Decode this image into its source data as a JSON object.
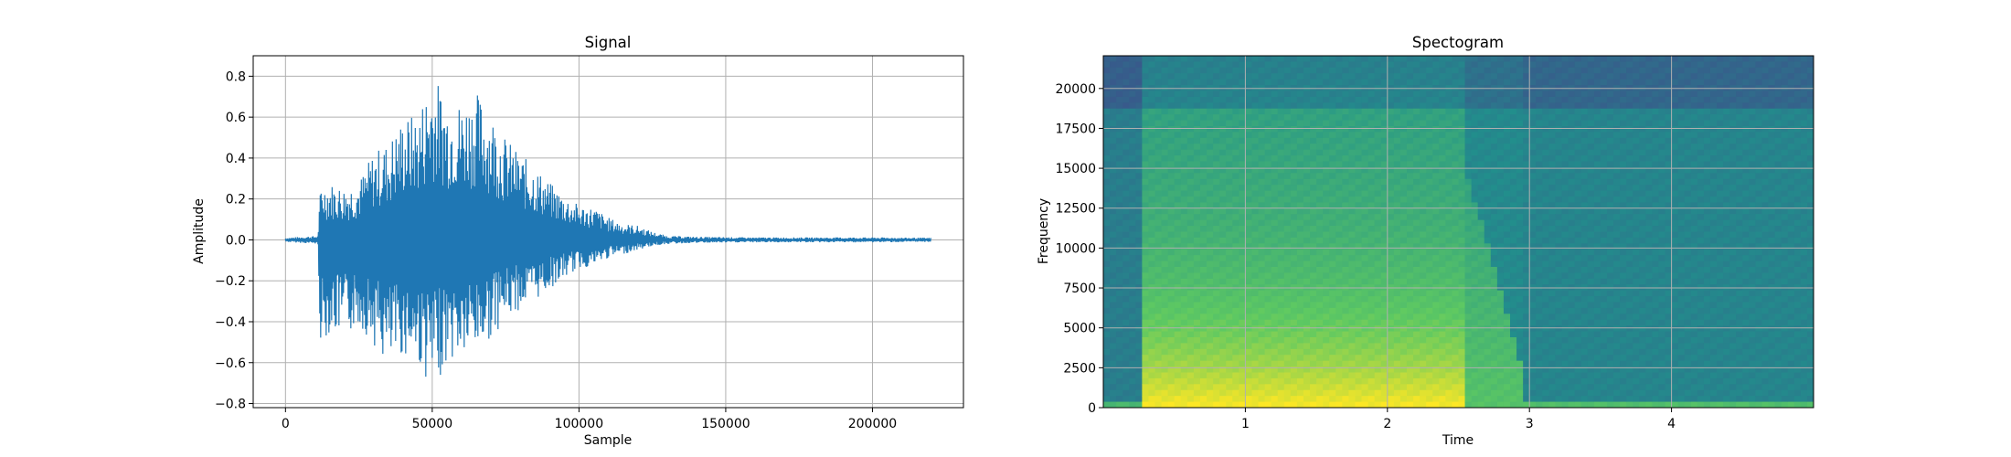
{
  "chart_data": [
    {
      "type": "line",
      "title": "Signal",
      "xlabel": "Sample",
      "ylabel": "Amplitude",
      "xlim": [
        -11000,
        231000
      ],
      "ylim": [
        -0.82,
        0.9
      ],
      "x_ticks": [
        0,
        50000,
        100000,
        150000,
        200000
      ],
      "y_ticks": [
        -0.8,
        -0.6,
        -0.4,
        -0.2,
        0.0,
        0.2,
        0.4,
        0.6,
        0.8
      ],
      "x_tick_labels": [
        "0",
        "50000",
        "100000",
        "150000",
        "200000"
      ],
      "y_tick_labels": [
        "−0.8",
        "−0.6",
        "−0.4",
        "−0.2",
        "0.0",
        "0.2",
        "0.4",
        "0.6",
        "0.8"
      ],
      "grid": true,
      "color": "#1f77b4",
      "series": [
        {
          "envelope_x": [
            0,
            11000,
            12000,
            15000,
            20000,
            25000,
            30000,
            35000,
            40000,
            45000,
            50000,
            55000,
            60000,
            65000,
            70000,
            75000,
            80000,
            85000,
            90000,
            95000,
            100000,
            105000,
            110000,
            115000,
            120000,
            125000,
            130000,
            140000,
            160000,
            180000,
            200000,
            220000
          ],
          "envelope_top": [
            0.01,
            0.02,
            0.27,
            0.28,
            0.26,
            0.29,
            0.43,
            0.48,
            0.6,
            0.62,
            0.82,
            0.7,
            0.68,
            0.73,
            0.63,
            0.5,
            0.42,
            0.36,
            0.28,
            0.22,
            0.17,
            0.16,
            0.11,
            0.08,
            0.07,
            0.04,
            0.02,
            0.015,
            0.012,
            0.012,
            0.012,
            0.01
          ],
          "envelope_bottom": [
            -0.01,
            -0.02,
            -0.53,
            -0.45,
            -0.48,
            -0.42,
            -0.51,
            -0.64,
            -0.56,
            -0.6,
            -0.74,
            -0.6,
            -0.58,
            -0.55,
            -0.48,
            -0.39,
            -0.34,
            -0.3,
            -0.24,
            -0.19,
            -0.14,
            -0.13,
            -0.09,
            -0.07,
            -0.05,
            -0.03,
            -0.02,
            -0.015,
            -0.012,
            -0.012,
            -0.012,
            -0.01
          ]
        }
      ]
    },
    {
      "type": "heatmap",
      "title": "Spectogram",
      "xlabel": "Time",
      "ylabel": "Frequency",
      "xlim": [
        0,
        5.0
      ],
      "ylim": [
        0,
        22050
      ],
      "x_ticks": [
        1,
        2,
        3,
        4
      ],
      "y_ticks": [
        0,
        2500,
        5000,
        7500,
        10000,
        12500,
        15000,
        17500,
        20000
      ],
      "x_tick_labels": [
        "1",
        "2",
        "3",
        "4"
      ],
      "y_tick_labels": [
        "0",
        "2500",
        "5000",
        "7500",
        "10000",
        "12500",
        "15000",
        "17500",
        "20000"
      ],
      "grid": true,
      "colormap": "viridis",
      "regions": [
        {
          "t": [
            0.0,
            0.28
          ],
          "f": [
            0,
            22050
          ],
          "level": 0.42
        },
        {
          "t": [
            0.28,
            2.55
          ],
          "f": [
            0,
            22050
          ],
          "level": 0.62
        },
        {
          "t": [
            2.55,
            2.95
          ],
          "f": [
            0,
            22050
          ],
          "level": 0.55
        },
        {
          "t": [
            2.95,
            5.0
          ],
          "f": [
            0,
            22050
          ],
          "level": 0.45
        }
      ]
    }
  ]
}
